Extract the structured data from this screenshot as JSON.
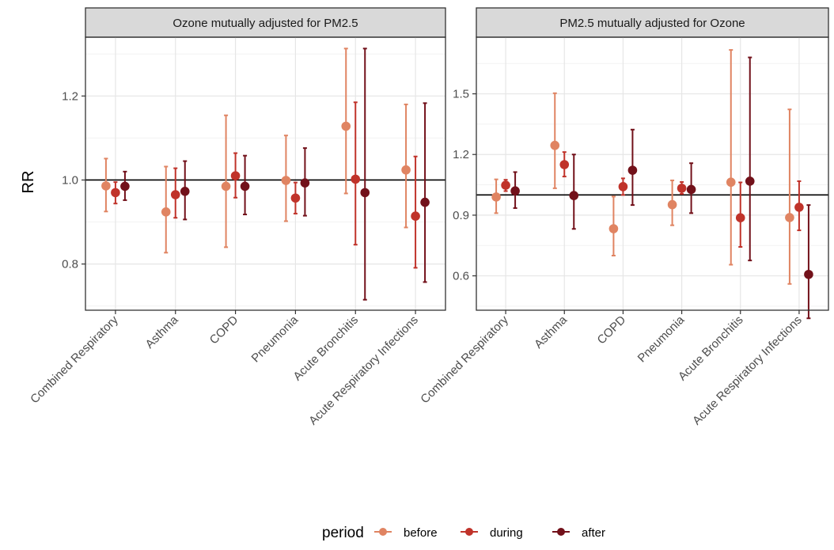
{
  "chart_data": [
    {
      "type": "scatter",
      "title": "Ozone mutually adjusted for PM2.5",
      "ylabel": "RR",
      "xlabel": "",
      "ylim": [
        0.69,
        1.34
      ],
      "yticks": [
        0.8,
        1.0,
        1.2
      ],
      "ytick_labels": [
        "0.8",
        "1.0",
        "1.2"
      ],
      "reference_line": 1.0,
      "categories": [
        "Combined Respiratory",
        "Asthma",
        "COPD",
        "Pneumonia",
        "Acute Bronchitis",
        "Acute Respiratory Infections"
      ],
      "series": [
        {
          "name": "before",
          "values": [
            0.986,
            0.924,
            0.985,
            0.999,
            1.128,
            1.024
          ],
          "lower": [
            0.925,
            0.827,
            0.84,
            0.902,
            0.968,
            0.887
          ],
          "upper": [
            1.051,
            1.032,
            1.154,
            1.106,
            1.313,
            1.18
          ]
        },
        {
          "name": "during",
          "values": [
            0.97,
            0.965,
            1.01,
            0.957,
            1.002,
            0.914
          ],
          "lower": [
            0.944,
            0.91,
            0.958,
            0.92,
            0.846,
            0.791
          ],
          "upper": [
            0.995,
            1.028,
            1.064,
            0.994,
            1.185,
            1.056
          ]
        },
        {
          "name": "after",
          "values": [
            0.985,
            0.973,
            0.985,
            0.993,
            0.97,
            0.947
          ],
          "lower": [
            0.952,
            0.906,
            0.918,
            0.915,
            0.715,
            0.757
          ],
          "upper": [
            1.02,
            1.045,
            1.058,
            1.076,
            1.313,
            1.183
          ]
        }
      ]
    },
    {
      "type": "scatter",
      "title": "PM2.5 mutually adjusted for Ozone",
      "ylabel": "RR",
      "xlabel": "",
      "ylim": [
        0.43,
        1.78
      ],
      "yticks": [
        0.6,
        0.9,
        1.2,
        1.5
      ],
      "ytick_labels": [
        "0.6",
        "0.9",
        "1.2",
        "1.5"
      ],
      "reference_line": 1.0,
      "categories": [
        "Combined Respiratory",
        "Asthma",
        "COPD",
        "Pneumonia",
        "Acute Bronchitis",
        "Acute Respiratory Infections"
      ],
      "series": [
        {
          "name": "before",
          "values": [
            0.99,
            1.245,
            0.833,
            0.952,
            1.063,
            0.888
          ],
          "lower": [
            0.91,
            1.033,
            0.7,
            0.85,
            0.655,
            0.56
          ],
          "upper": [
            1.077,
            1.503,
            0.992,
            1.072,
            1.717,
            1.423
          ]
        },
        {
          "name": "during",
          "values": [
            1.048,
            1.15,
            1.041,
            1.033,
            0.887,
            0.939
          ],
          "lower": [
            1.019,
            1.091,
            1.0,
            1.005,
            0.743,
            0.825
          ],
          "upper": [
            1.075,
            1.212,
            1.082,
            1.064,
            1.062,
            1.068
          ]
        },
        {
          "name": "after",
          "values": [
            1.02,
            0.997,
            1.122,
            1.027,
            1.068,
            0.607
          ],
          "lower": [
            0.935,
            0.832,
            0.95,
            0.91,
            0.676,
            0.39
          ],
          "upper": [
            1.113,
            1.2,
            1.323,
            1.157,
            1.68,
            0.95
          ]
        }
      ]
    }
  ],
  "legend": {
    "title": "period",
    "entries": [
      {
        "label": "before",
        "color": "#E08462"
      },
      {
        "label": "during",
        "color": "#C0332A"
      },
      {
        "label": "after",
        "color": "#72111A"
      }
    ]
  },
  "colors": {
    "before": "#E08462",
    "during": "#C0332A",
    "after": "#72111A",
    "strip_bg": "#D9D9D9",
    "grid_major": "#E6E6E6",
    "grid_minor": "#F2F2F2",
    "panel_border": "#333333",
    "ref_line": "#000000"
  }
}
